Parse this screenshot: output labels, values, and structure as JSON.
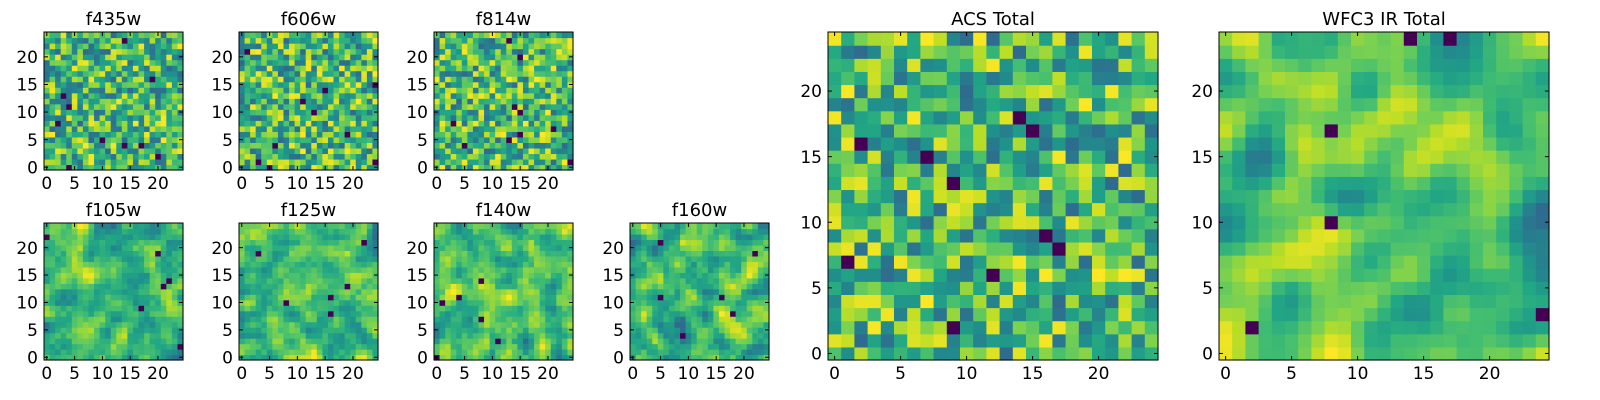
{
  "chart_data": [
    {
      "type": "heatmap",
      "title": "f435w",
      "size": 25,
      "xlim": [
        0,
        24
      ],
      "ylim": [
        0,
        24
      ],
      "xticks": [
        0,
        5,
        10,
        15,
        20
      ],
      "yticks": [
        0,
        5,
        10,
        15,
        20
      ],
      "seed": 11,
      "smooth": 0,
      "colormap": "viridis"
    },
    {
      "type": "heatmap",
      "title": "f606w",
      "size": 25,
      "xlim": [
        0,
        24
      ],
      "ylim": [
        0,
        24
      ],
      "xticks": [
        0,
        5,
        10,
        15,
        20
      ],
      "yticks": [
        0,
        5,
        10,
        15,
        20
      ],
      "seed": 23,
      "smooth": 0,
      "colormap": "viridis"
    },
    {
      "type": "heatmap",
      "title": "f814w",
      "size": 25,
      "xlim": [
        0,
        24
      ],
      "ylim": [
        0,
        24
      ],
      "xticks": [
        0,
        5,
        10,
        15,
        20
      ],
      "yticks": [
        0,
        5,
        10,
        15,
        20
      ],
      "seed": 37,
      "smooth": 0,
      "colormap": "viridis"
    },
    {
      "type": "heatmap",
      "title": "f105w",
      "size": 25,
      "xlim": [
        0,
        24
      ],
      "ylim": [
        0,
        24
      ],
      "xticks": [
        0,
        5,
        10,
        15,
        20
      ],
      "yticks": [
        0,
        5,
        10,
        15,
        20
      ],
      "seed": 41,
      "smooth": 1,
      "colormap": "viridis"
    },
    {
      "type": "heatmap",
      "title": "f125w",
      "size": 25,
      "xlim": [
        0,
        24
      ],
      "ylim": [
        0,
        24
      ],
      "xticks": [
        0,
        5,
        10,
        15,
        20
      ],
      "yticks": [
        0,
        5,
        10,
        15,
        20
      ],
      "seed": 53,
      "smooth": 1,
      "colormap": "viridis"
    },
    {
      "type": "heatmap",
      "title": "f140w",
      "size": 25,
      "xlim": [
        0,
        24
      ],
      "ylim": [
        0,
        24
      ],
      "xticks": [
        0,
        5,
        10,
        15,
        20
      ],
      "yticks": [
        0,
        5,
        10,
        15,
        20
      ],
      "seed": 67,
      "smooth": 1,
      "colormap": "viridis"
    },
    {
      "type": "heatmap",
      "title": "f160w",
      "size": 25,
      "xlim": [
        0,
        24
      ],
      "ylim": [
        0,
        24
      ],
      "xticks": [
        0,
        5,
        10,
        15,
        20
      ],
      "yticks": [
        0,
        5,
        10,
        15,
        20
      ],
      "seed": 79,
      "smooth": 1,
      "colormap": "viridis"
    },
    {
      "type": "heatmap",
      "title": "ACS Total",
      "size": 25,
      "xlim": [
        0,
        24
      ],
      "ylim": [
        0,
        24
      ],
      "xticks": [
        0,
        5,
        10,
        15,
        20
      ],
      "yticks": [
        0,
        5,
        10,
        15,
        20
      ],
      "seed": 97,
      "smooth": 0,
      "colormap": "viridis"
    },
    {
      "type": "heatmap",
      "title": "WFC3 IR Total",
      "size": 25,
      "xlim": [
        0,
        24
      ],
      "ylim": [
        0,
        24
      ],
      "xticks": [
        0,
        5,
        10,
        15,
        20
      ],
      "yticks": [
        0,
        5,
        10,
        15,
        20
      ],
      "seed": 113,
      "smooth": 2,
      "colormap": "viridis"
    }
  ]
}
